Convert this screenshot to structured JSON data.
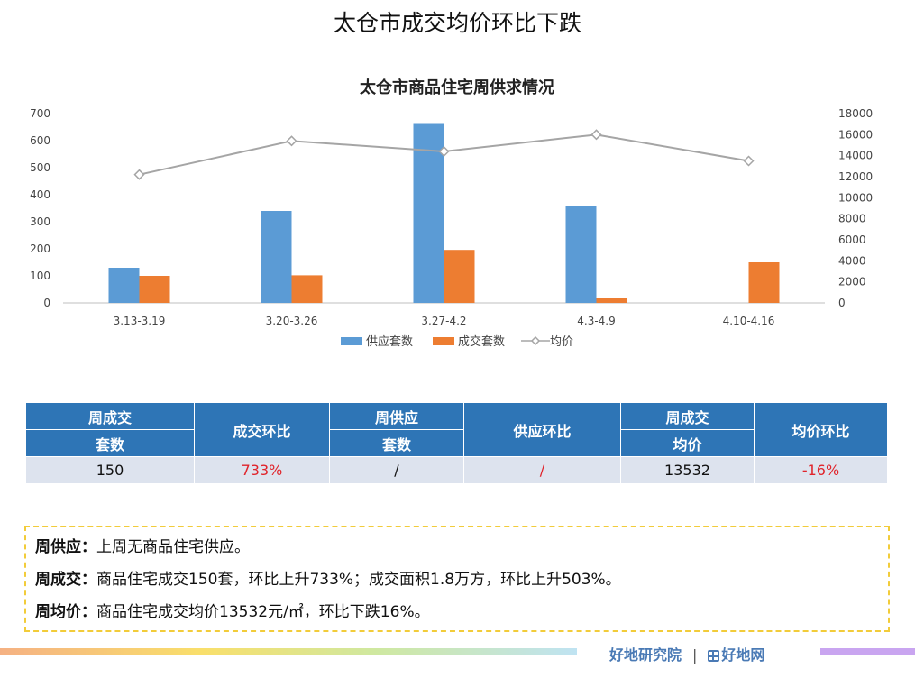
{
  "page": {
    "title": "太仓市成交均价环比下跌"
  },
  "chart_data": {
    "type": "bar",
    "title": "太仓市商品住宅周供求情况",
    "categories": [
      "3.13-3.19",
      "3.20-3.26",
      "3.27-4.2",
      "4.3-4.9",
      "4.10-4.16"
    ],
    "series": [
      {
        "name": "供应套数",
        "type": "bar",
        "axis": "left",
        "color": "#5b9bd5",
        "values": [
          130,
          340,
          665,
          360,
          0
        ]
      },
      {
        "name": "成交套数",
        "type": "bar",
        "axis": "left",
        "color": "#ed7d31",
        "values": [
          100,
          102,
          196,
          18,
          150
        ]
      },
      {
        "name": "均价",
        "type": "line",
        "axis": "right",
        "color": "#a5a5a5",
        "values": [
          12200,
          15400,
          14400,
          16000,
          13500
        ]
      }
    ],
    "y_left": {
      "min": 0,
      "max": 700,
      "ticks": [
        0,
        100,
        200,
        300,
        400,
        500,
        600,
        700
      ]
    },
    "y_right": {
      "min": 0,
      "max": 18000,
      "ticks": [
        0,
        2000,
        4000,
        6000,
        8000,
        10000,
        12000,
        14000,
        16000,
        18000
      ]
    },
    "grid": false,
    "legend_position": "bottom"
  },
  "table": {
    "headers": {
      "weekly_deals_line1": "周成交",
      "weekly_deals_line2": "套数",
      "deals_mom": "成交环比",
      "weekly_supply_line1": "周供应",
      "weekly_supply_line2": "套数",
      "supply_mom": "供应环比",
      "weekly_price_line1": "周成交",
      "weekly_price_line2": "均价",
      "price_mom": "均价环比"
    },
    "row": {
      "weekly_deals": "150",
      "deals_mom": "733%",
      "weekly_supply": "/",
      "supply_mom": "/",
      "weekly_price": "13532",
      "price_mom": "-16%"
    }
  },
  "notes": [
    {
      "label": "周供应：",
      "text": "上周无商品住宅供应。"
    },
    {
      "label": "周成交：",
      "text": "商品住宅成交150套，环比上升733%；成交面积1.8万方，环比上升503%。"
    },
    {
      "label": "周均价：",
      "text": "商品住宅成交均价13532元/㎡，环比下跌16%。"
    }
  ],
  "footer": {
    "brand_left": "好地研究院",
    "separator": "|",
    "brand_right": "好地网",
    "bar_colors": [
      "#f5b183",
      "#f9df6b",
      "#cfe8a0",
      "#bfe3f2",
      "#c9a5f0"
    ]
  }
}
